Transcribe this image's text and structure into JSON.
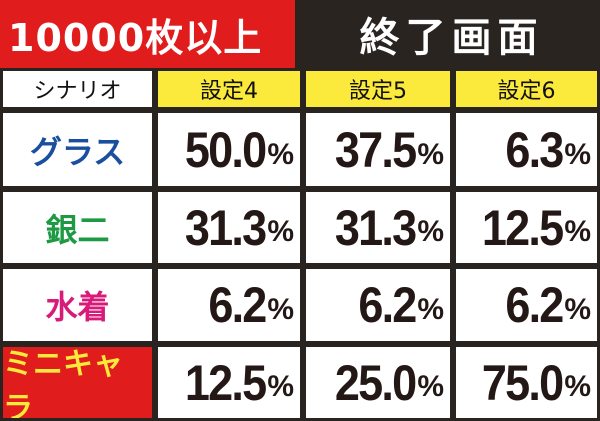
{
  "banner": {
    "left": "10000枚以上",
    "right": "終了画面"
  },
  "header": {
    "scenario": "シナリオ",
    "s4": "設定4",
    "s5": "設定5",
    "s6": "設定6"
  },
  "rows": [
    {
      "label": "グラス",
      "color": "#1a4fa0",
      "v4": "50.0",
      "v5": "37.5",
      "v6": "6.3"
    },
    {
      "label": "銀二",
      "color": "#1e9a45",
      "v4": "31.3",
      "v5": "31.3",
      "v6": "12.5"
    },
    {
      "label": "水着",
      "color": "#d81b7a",
      "v4": "6.2",
      "v5": "6.2",
      "v6": "6.2"
    },
    {
      "label": "ミニキャラ",
      "color": "#fbe93c",
      "v4": "12.5",
      "v5": "25.0",
      "v6": "75.0"
    }
  ],
  "unit": "%"
}
